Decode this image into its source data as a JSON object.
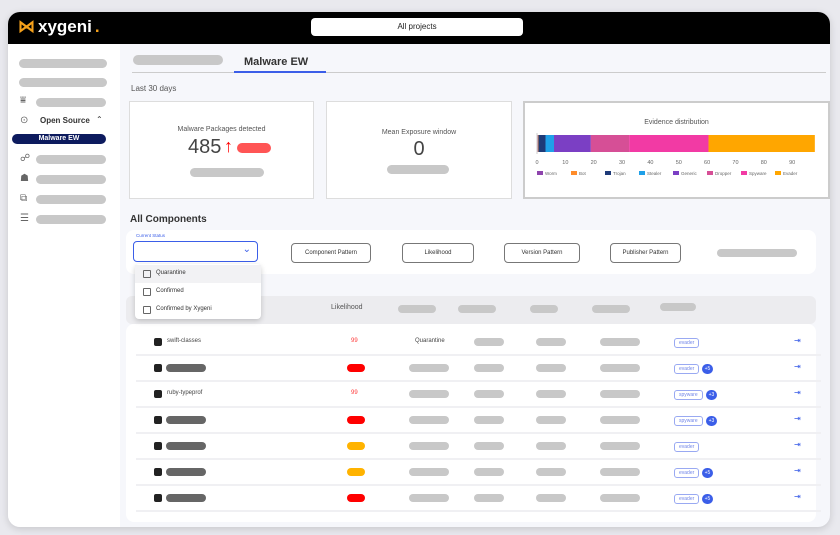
{
  "app": {
    "brand": "xygeni",
    "project_selector": "All projects"
  },
  "sidebar": {
    "section": "Open Source",
    "active_item": "Malware EW"
  },
  "tabs": {
    "active": "Malware EW"
  },
  "period": "Last 30 days",
  "cards": {
    "malware": {
      "label": "Malware Packages detected",
      "value": "485",
      "trend": "↑"
    },
    "exposure": {
      "label": "Mean Exposure window",
      "value": "0"
    }
  },
  "chart_data": {
    "type": "bar",
    "orientation": "horizontal-stacked",
    "title": "Evidence distribution",
    "xlim": [
      0,
      97
    ],
    "ticks": [
      0,
      10,
      20,
      30,
      40,
      50,
      60,
      70,
      80,
      90
    ],
    "legend": "bottom",
    "series": [
      {
        "name": "Worm",
        "value": 0.3,
        "color": "#8e44ad"
      },
      {
        "name": "Bot",
        "value": 0.2,
        "color": "#ff8c2a"
      },
      {
        "name": "Trojan",
        "value": 2.5,
        "color": "#1e3a78"
      },
      {
        "name": "Stealer",
        "value": 3,
        "color": "#1fa0e8"
      },
      {
        "name": "Generic",
        "value": 13,
        "color": "#7b3fc4"
      },
      {
        "name": "Dropper",
        "value": 13.5,
        "color": "#d64f96"
      },
      {
        "name": "Spyware",
        "value": 28,
        "color": "#f23aa4"
      },
      {
        "name": "Evader",
        "value": 37.5,
        "color": "#ffa600"
      }
    ]
  },
  "components": {
    "title": "All Components",
    "status_label": "Current Status",
    "status_options": [
      "Quarantine",
      "Confirmed",
      "Confirmed by Xygeni"
    ],
    "filters": [
      "Component Pattern",
      "Likelihood",
      "Version Pattern",
      "Publisher Pattern"
    ],
    "column_likelihood": "Likelihood",
    "rows": [
      {
        "name": "swift-classes",
        "likelihood": "99",
        "status": "Quarantine",
        "tag": "evader",
        "extra": ""
      },
      {
        "name": "",
        "likelihood": "",
        "status": "",
        "tag": "evader",
        "extra": "+5"
      },
      {
        "name": "ruby-typeprof",
        "likelihood": "99",
        "status": "",
        "tag": "spyware",
        "extra": "+3"
      },
      {
        "name": "",
        "likelihood": "",
        "status": "",
        "tag": "spyware",
        "extra": "+3"
      },
      {
        "name": "",
        "likelihood": "",
        "status": "",
        "tag": "evader",
        "extra": ""
      },
      {
        "name": "",
        "likelihood": "",
        "status": "",
        "tag": "evader",
        "extra": "+5"
      },
      {
        "name": "",
        "likelihood": "",
        "status": "",
        "tag": "evader",
        "extra": "+5"
      }
    ],
    "likelihood_colors": [
      "#ff3b3b",
      "#ff0000",
      "#ff3b3b",
      "#ff0000",
      "#ffb300",
      "#ffb300",
      "#ff0000"
    ]
  }
}
